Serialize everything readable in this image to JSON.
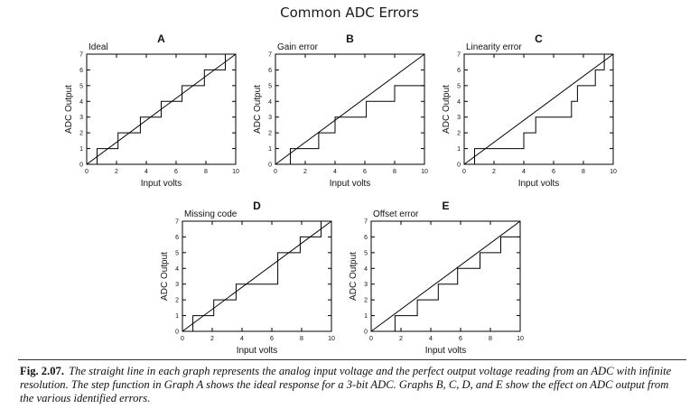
{
  "title": "Common ADC Errors",
  "caption": {
    "label": "Fig. 2.07.",
    "text": "The straight line in each graph represents the analog input voltage and the perfect output voltage reading from an ADC with infinite resolution. The step function in Graph A shows the ideal response for a 3-bit ADC. Graphs B, C, D, and E show the effect on ADC output from the various identified errors."
  },
  "colors": {
    "line": "#000000",
    "text": "#111111"
  },
  "chart_data": [
    {
      "id": "A",
      "type": "line",
      "subtitle": "Ideal",
      "xlabel": "Input volts",
      "ylabel": "ADC Output",
      "xlim": [
        0,
        10
      ],
      "ylim": [
        0,
        7
      ],
      "xticks": [
        0,
        2,
        4,
        6,
        8,
        10
      ],
      "yticks": [
        0,
        1,
        2,
        3,
        4,
        5,
        6,
        7
      ],
      "grid": false,
      "series": [
        {
          "values": [
            [
              0,
              0
            ],
            [
              10,
              7
            ]
          ]
        },
        {
          "values": [
            [
              0,
              0
            ],
            [
              0.7,
              0
            ],
            [
              0.7,
              1
            ],
            [
              2.1,
              1
            ],
            [
              2.1,
              2
            ],
            [
              3.6,
              2
            ],
            [
              3.6,
              3
            ],
            [
              5,
              3
            ],
            [
              5,
              4
            ],
            [
              6.4,
              4
            ],
            [
              6.4,
              5
            ],
            [
              7.9,
              5
            ],
            [
              7.9,
              6
            ],
            [
              9.3,
              6
            ],
            [
              9.3,
              7
            ],
            [
              10,
              7
            ]
          ]
        }
      ]
    },
    {
      "id": "B",
      "type": "line",
      "subtitle": "Gain error",
      "xlabel": "Input volts",
      "ylabel": "ADC Output",
      "xlim": [
        0,
        10
      ],
      "ylim": [
        0,
        7
      ],
      "xticks": [
        0,
        2,
        4,
        6,
        8,
        10
      ],
      "yticks": [
        0,
        1,
        2,
        3,
        4,
        5,
        6,
        7
      ],
      "grid": false,
      "series": [
        {
          "values": [
            [
              0,
              0
            ],
            [
              10,
              7
            ]
          ]
        },
        {
          "values": [
            [
              0,
              0
            ],
            [
              1,
              0
            ],
            [
              1,
              1
            ],
            [
              2.9,
              1
            ],
            [
              2.9,
              2
            ],
            [
              4,
              2
            ],
            [
              4,
              3
            ],
            [
              6.1,
              3
            ],
            [
              6.1,
              4
            ],
            [
              8,
              4
            ],
            [
              8,
              5
            ],
            [
              10,
              5
            ]
          ]
        }
      ]
    },
    {
      "id": "C",
      "type": "line",
      "subtitle": "Linearity error",
      "xlabel": "Input volts",
      "ylabel": "ADC Output",
      "xlim": [
        0,
        10
      ],
      "ylim": [
        0,
        7
      ],
      "xticks": [
        0,
        2,
        4,
        6,
        8,
        10
      ],
      "yticks": [
        0,
        1,
        2,
        3,
        4,
        5,
        6,
        7
      ],
      "grid": false,
      "series": [
        {
          "values": [
            [
              0,
              0
            ],
            [
              10,
              7
            ]
          ]
        },
        {
          "values": [
            [
              0,
              0
            ],
            [
              0.7,
              0
            ],
            [
              0.7,
              1
            ],
            [
              4,
              1
            ],
            [
              4,
              2
            ],
            [
              4.8,
              2
            ],
            [
              4.8,
              3
            ],
            [
              7.2,
              3
            ],
            [
              7.2,
              4
            ],
            [
              7.6,
              4
            ],
            [
              7.6,
              5
            ],
            [
              8.8,
              5
            ],
            [
              8.8,
              6
            ],
            [
              9.4,
              6
            ],
            [
              9.4,
              7
            ],
            [
              10,
              7
            ]
          ]
        }
      ]
    },
    {
      "id": "D",
      "type": "line",
      "subtitle": "Missing code",
      "xlabel": "Input volts",
      "ylabel": "ADC Output",
      "xlim": [
        0,
        10
      ],
      "ylim": [
        0,
        7
      ],
      "xticks": [
        0,
        2,
        4,
        6,
        8,
        10
      ],
      "yticks": [
        0,
        1,
        2,
        3,
        4,
        5,
        6,
        7
      ],
      "grid": false,
      "series": [
        {
          "values": [
            [
              0,
              0
            ],
            [
              10,
              7
            ]
          ]
        },
        {
          "values": [
            [
              0,
              0
            ],
            [
              0.7,
              0
            ],
            [
              0.7,
              1
            ],
            [
              2.1,
              1
            ],
            [
              2.1,
              2
            ],
            [
              3.6,
              2
            ],
            [
              3.6,
              3
            ],
            [
              6.4,
              3
            ],
            [
              6.4,
              5
            ],
            [
              7.9,
              5
            ],
            [
              7.9,
              6
            ],
            [
              9.3,
              6
            ],
            [
              9.3,
              7
            ],
            [
              10,
              7
            ]
          ]
        }
      ]
    },
    {
      "id": "E",
      "type": "line",
      "subtitle": "Offset error",
      "xlabel": "Input volts",
      "ylabel": "ADC Output",
      "xlim": [
        0,
        10
      ],
      "ylim": [
        0,
        7
      ],
      "xticks": [
        0,
        2,
        4,
        6,
        8,
        10
      ],
      "yticks": [
        0,
        1,
        2,
        3,
        4,
        5,
        6,
        7
      ],
      "grid": false,
      "series": [
        {
          "values": [
            [
              0,
              0
            ],
            [
              10,
              7
            ]
          ]
        },
        {
          "values": [
            [
              1.6,
              0
            ],
            [
              1.6,
              1
            ],
            [
              3.1,
              1
            ],
            [
              3.1,
              2
            ],
            [
              4.5,
              2
            ],
            [
              4.5,
              3
            ],
            [
              5.8,
              3
            ],
            [
              5.8,
              4
            ],
            [
              7.3,
              4
            ],
            [
              7.3,
              5
            ],
            [
              8.7,
              5
            ],
            [
              8.7,
              6
            ],
            [
              10,
              6
            ]
          ]
        }
      ]
    }
  ]
}
